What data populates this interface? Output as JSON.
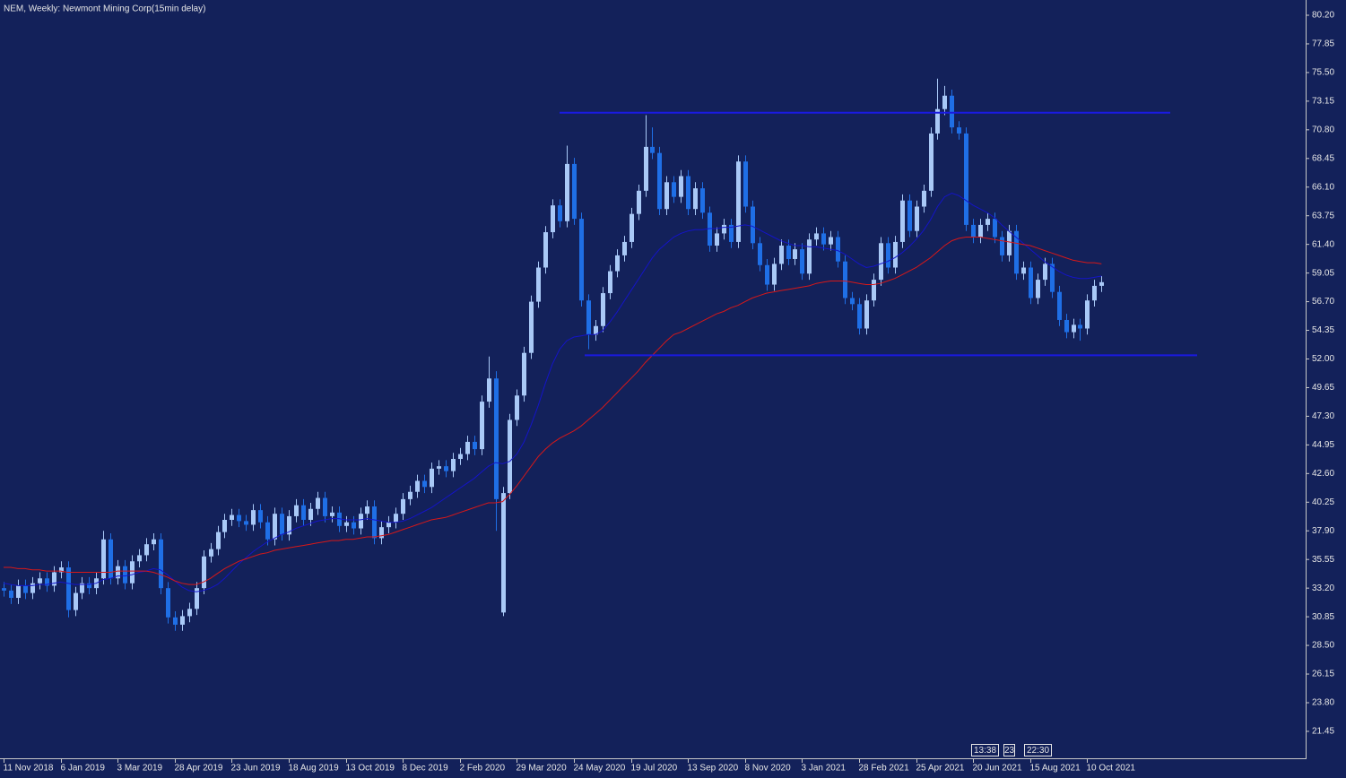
{
  "chart_data": {
    "type": "candlestick",
    "title": "NEM, Weekly:  Newmont Mining Corp(15min delay)",
    "up_color": "#a9c9f7",
    "down_color": "#1f6fe6",
    "categories": [
      "11 Nov 2018",
      null,
      null,
      null,
      null,
      null,
      null,
      null,
      "6 Jan 2019",
      null,
      null,
      null,
      null,
      null,
      null,
      null,
      "3 Mar 2019",
      null,
      null,
      null,
      null,
      null,
      null,
      null,
      "28 Apr 2019",
      null,
      null,
      null,
      null,
      null,
      null,
      null,
      "23 Jun 2019",
      null,
      null,
      null,
      null,
      null,
      null,
      null,
      "18 Aug 2019",
      null,
      null,
      null,
      null,
      null,
      null,
      null,
      "13 Oct 2019",
      null,
      null,
      null,
      null,
      null,
      null,
      null,
      "8 Dec 2019",
      null,
      null,
      null,
      null,
      null,
      null,
      null,
      "2 Feb 2020",
      null,
      null,
      null,
      null,
      null,
      null,
      null,
      "29 Mar 2020",
      null,
      null,
      null,
      null,
      null,
      null,
      null,
      "24 May 2020",
      null,
      null,
      null,
      null,
      null,
      null,
      null,
      "19 Jul 2020",
      null,
      null,
      null,
      null,
      null,
      null,
      null,
      "13 Sep 2020",
      null,
      null,
      null,
      null,
      null,
      null,
      null,
      "8 Nov 2020",
      null,
      null,
      null,
      null,
      null,
      null,
      null,
      "3 Jan 2021",
      null,
      null,
      null,
      null,
      null,
      null,
      null,
      "28 Feb 2021",
      null,
      null,
      null,
      null,
      null,
      null,
      null,
      "25 Apr 2021",
      null,
      null,
      null,
      null,
      null,
      null,
      null,
      "20 Jun 2021",
      null,
      null,
      null,
      null,
      null,
      null,
      null,
      "15 Aug 2021",
      null,
      null,
      null,
      null,
      null,
      null,
      null,
      "10 Oct 2021",
      null,
      null
    ],
    "open": [
      33.2,
      33.0,
      32.4,
      33.4,
      32.8,
      33.6,
      34.0,
      33.4,
      34.5,
      34.9,
      31.4,
      32.8,
      33.6,
      33.2,
      34.0,
      37.2,
      34.0,
      35.0,
      33.6,
      35.4,
      35.9,
      36.8,
      37.2,
      33.2,
      30.8,
      30.2,
      30.9,
      31.5,
      33.2,
      35.8,
      36.4,
      37.8,
      38.8,
      39.2,
      38.7,
      38.4,
      39.6,
      38.6,
      37.2,
      39.3,
      37.6,
      39.1,
      40.0,
      38.8,
      39.7,
      40.6,
      39.1,
      39.4,
      38.3,
      38.6,
      38.1,
      39.3,
      39.9,
      37.3,
      38.2,
      38.6,
      39.3,
      40.5,
      41.1,
      42.0,
      41.5,
      43.0,
      43.2,
      42.8,
      43.8,
      44.2,
      45.2,
      44.6,
      48.5,
      50.4,
      31.2,
      41.0,
      47.0,
      49.0,
      52.5,
      56.7,
      59.5,
      62.4,
      64.6,
      63.3,
      68.0,
      63.5,
      56.8,
      54.0,
      54.7,
      57.4,
      59.2,
      60.5,
      61.6,
      63.9,
      65.8,
      69.4,
      68.9,
      64.3,
      66.5,
      65.3,
      67.0,
      64.3,
      66.0,
      64.0,
      61.3,
      62.3,
      63.0,
      61.6,
      68.2,
      64.5,
      61.5,
      59.7,
      58.1,
      59.8,
      61.3,
      60.2,
      61.0,
      59.0,
      61.8,
      62.3,
      61.4,
      62.0,
      60.0,
      57.0,
      56.5,
      54.5,
      56.8,
      58.5,
      61.5,
      59.5,
      61.6,
      65.0,
      62.5,
      64.5,
      65.8,
      70.5,
      72.5,
      73.6,
      71.0,
      70.5,
      63.0,
      62.0,
      63.0,
      63.5,
      62.0,
      60.5,
      62.5,
      59.0,
      59.5,
      57.0,
      58.5,
      59.8,
      57.5,
      55.2,
      54.2,
      54.8,
      54.5,
      56.8,
      58.0
    ],
    "high": [
      33.7,
      33.5,
      33.9,
      33.9,
      34.1,
      34.5,
      34.5,
      35.0,
      35.4,
      35.4,
      33.3,
      34.1,
      34.1,
      34.5,
      37.9,
      37.7,
      35.5,
      35.5,
      35.9,
      36.4,
      37.3,
      37.7,
      37.7,
      33.7,
      31.3,
      31.4,
      32.0,
      33.7,
      36.3,
      36.9,
      38.3,
      39.3,
      39.7,
      39.7,
      39.2,
      40.1,
      40.1,
      39.1,
      39.8,
      39.8,
      39.6,
      40.5,
      40.5,
      40.2,
      41.1,
      41.1,
      39.9,
      39.9,
      39.1,
      39.1,
      39.8,
      40.4,
      40.4,
      38.7,
      39.1,
      39.8,
      41.0,
      41.6,
      42.5,
      42.5,
      43.5,
      43.7,
      43.7,
      44.3,
      44.7,
      45.7,
      45.7,
      49.0,
      52.2,
      51.0,
      41.5,
      47.5,
      49.5,
      53.0,
      57.2,
      60.0,
      62.9,
      65.1,
      65.1,
      69.5,
      68.5,
      64.0,
      57.3,
      55.2,
      57.9,
      59.7,
      61.0,
      62.1,
      64.4,
      66.3,
      72.0,
      71.0,
      69.4,
      67.0,
      67.0,
      67.5,
      67.5,
      66.5,
      66.5,
      64.5,
      62.8,
      63.5,
      63.5,
      68.7,
      68.7,
      65.0,
      62.0,
      60.2,
      60.3,
      61.8,
      61.8,
      61.5,
      61.5,
      62.3,
      62.8,
      62.8,
      62.5,
      62.5,
      60.5,
      57.5,
      57.0,
      57.3,
      59.0,
      62.0,
      62.0,
      62.1,
      65.5,
      65.5,
      65.0,
      66.3,
      71.0,
      75.0,
      74.4,
      74.1,
      71.5,
      71.0,
      63.5,
      63.5,
      64.0,
      64.0,
      62.5,
      63.0,
      63.0,
      60.0,
      60.0,
      59.0,
      60.3,
      60.3,
      58.0,
      55.7,
      55.3,
      55.3,
      57.3,
      58.5,
      58.8
    ],
    "low": [
      32.5,
      31.9,
      31.9,
      32.3,
      32.3,
      33.1,
      32.9,
      32.9,
      34.0,
      30.8,
      30.9,
      32.3,
      32.7,
      32.7,
      33.5,
      33.5,
      33.5,
      33.1,
      33.1,
      34.9,
      35.4,
      36.3,
      32.7,
      30.3,
      29.7,
      29.7,
      30.4,
      31.0,
      32.7,
      35.3,
      35.9,
      37.3,
      38.3,
      38.2,
      37.9,
      37.9,
      38.1,
      36.7,
      36.7,
      37.1,
      37.1,
      38.6,
      38.3,
      38.3,
      39.2,
      38.6,
      38.6,
      37.8,
      37.8,
      37.6,
      37.6,
      38.8,
      36.8,
      36.8,
      37.7,
      38.1,
      38.8,
      40.0,
      40.6,
      41.0,
      41.0,
      42.5,
      42.3,
      42.3,
      43.3,
      43.7,
      44.1,
      44.1,
      48.0,
      37.9,
      30.9,
      40.5,
      46.5,
      48.5,
      52.0,
      56.2,
      59.0,
      61.9,
      62.8,
      62.8,
      63.0,
      56.3,
      52.8,
      53.5,
      54.2,
      56.9,
      58.7,
      60.0,
      61.1,
      63.4,
      65.3,
      68.4,
      63.8,
      63.8,
      64.8,
      64.8,
      63.8,
      63.8,
      63.5,
      60.8,
      60.8,
      61.8,
      61.1,
      61.1,
      64.0,
      61.0,
      59.2,
      57.6,
      57.6,
      59.3,
      59.7,
      59.7,
      58.5,
      58.5,
      61.3,
      60.9,
      60.9,
      59.5,
      56.5,
      56.0,
      54.0,
      54.0,
      56.3,
      58.0,
      59.0,
      59.0,
      61.1,
      62.0,
      62.0,
      64.0,
      65.3,
      70.0,
      72.0,
      70.5,
      70.0,
      62.5,
      61.5,
      61.5,
      62.5,
      61.5,
      60.0,
      60.0,
      58.5,
      58.5,
      56.5,
      56.5,
      58.0,
      57.0,
      54.7,
      53.7,
      53.7,
      53.5,
      54.0,
      56.3,
      57.5
    ],
    "close": [
      33.0,
      32.4,
      33.4,
      32.8,
      33.6,
      34.0,
      33.4,
      34.5,
      34.9,
      31.4,
      32.8,
      33.6,
      33.2,
      34.0,
      37.2,
      34.0,
      35.0,
      33.6,
      35.4,
      35.9,
      36.8,
      37.2,
      33.2,
      30.8,
      30.2,
      30.9,
      31.5,
      33.2,
      35.8,
      36.4,
      37.8,
      38.8,
      39.2,
      38.7,
      38.4,
      39.6,
      38.6,
      37.2,
      39.3,
      37.6,
      39.1,
      40.0,
      38.8,
      39.7,
      40.6,
      39.1,
      39.4,
      38.3,
      38.6,
      38.1,
      39.3,
      39.9,
      37.3,
      38.2,
      38.6,
      39.3,
      40.5,
      41.1,
      42.0,
      41.5,
      43.0,
      43.2,
      42.8,
      43.8,
      44.2,
      45.2,
      44.6,
      48.5,
      50.4,
      40.5,
      41.0,
      47.0,
      49.0,
      52.5,
      56.7,
      59.5,
      62.4,
      64.6,
      63.3,
      68.0,
      63.5,
      56.8,
      54.0,
      54.7,
      57.4,
      59.2,
      60.5,
      61.6,
      63.9,
      65.8,
      69.4,
      68.9,
      64.3,
      66.5,
      65.3,
      67.0,
      64.3,
      66.0,
      64.0,
      61.3,
      62.3,
      63.0,
      61.6,
      68.2,
      64.5,
      61.5,
      59.7,
      58.1,
      59.8,
      61.3,
      60.2,
      61.0,
      59.0,
      61.8,
      62.3,
      61.4,
      62.0,
      60.0,
      57.0,
      56.5,
      54.5,
      56.8,
      58.5,
      61.5,
      59.5,
      61.6,
      65.0,
      62.5,
      64.5,
      65.8,
      70.5,
      72.5,
      73.6,
      71.0,
      70.5,
      63.0,
      62.0,
      63.0,
      63.5,
      62.0,
      60.5,
      62.5,
      59.0,
      59.5,
      57.0,
      58.5,
      59.8,
      57.5,
      55.2,
      54.2,
      54.8,
      54.5,
      56.8,
      58.0,
      58.3
    ],
    "lines": [
      {
        "color": "#1414c8",
        "values": [
          33.6,
          33.5,
          33.4,
          33.4,
          33.4,
          33.5,
          33.5,
          33.6,
          33.7,
          33.6,
          33.5,
          33.5,
          33.5,
          33.6,
          33.9,
          34.0,
          34.2,
          34.2,
          34.3,
          34.5,
          34.6,
          34.8,
          34.7,
          34.3,
          33.8,
          33.3,
          33.0,
          32.9,
          33.0,
          33.2,
          33.5,
          34.0,
          34.6,
          35.2,
          35.7,
          36.2,
          36.6,
          37.0,
          37.3,
          37.6,
          37.8,
          38.1,
          38.3,
          38.5,
          38.7,
          38.8,
          38.9,
          38.9,
          38.8,
          38.8,
          38.8,
          38.9,
          38.8,
          38.7,
          38.6,
          38.6,
          38.7,
          38.9,
          39.2,
          39.5,
          39.8,
          40.2,
          40.6,
          41.0,
          41.4,
          41.8,
          42.2,
          42.7,
          43.2,
          43.5,
          43.4,
          43.6,
          44.2,
          45.2,
          46.6,
          48.2,
          50.0,
          51.6,
          52.8,
          53.5,
          53.8,
          53.9,
          54.0,
          54.0,
          54.3,
          55.0,
          55.8,
          56.7,
          57.6,
          58.5,
          59.4,
          60.3,
          61.0,
          61.5,
          62.0,
          62.3,
          62.5,
          62.6,
          62.6,
          62.7,
          62.7,
          62.8,
          62.8,
          62.9,
          63.0,
          62.9,
          62.6,
          62.3,
          62.0,
          61.7,
          61.5,
          61.3,
          61.3,
          61.2,
          61.2,
          61.1,
          61.0,
          60.9,
          60.6,
          60.2,
          59.8,
          59.5,
          59.6,
          59.8,
          60.0,
          60.3,
          60.7,
          61.2,
          61.8,
          62.5,
          63.4,
          64.5,
          65.3,
          65.6,
          65.4,
          65.0,
          64.6,
          64.3,
          64.0,
          63.6,
          63.0,
          62.5,
          62.0,
          61.5,
          61.0,
          60.5,
          60.0,
          59.6,
          59.2,
          58.9,
          58.7,
          58.6,
          58.6,
          58.7,
          58.8
        ]
      },
      {
        "color": "#d81818",
        "values": [
          34.9,
          34.9,
          34.8,
          34.8,
          34.7,
          34.7,
          34.6,
          34.6,
          34.6,
          34.5,
          34.5,
          34.5,
          34.5,
          34.5,
          34.5,
          34.5,
          34.6,
          34.6,
          34.6,
          34.6,
          34.6,
          34.5,
          34.3,
          34.1,
          33.8,
          33.6,
          33.5,
          33.5,
          33.7,
          34.0,
          34.4,
          34.8,
          35.1,
          35.4,
          35.6,
          35.8,
          36.0,
          36.1,
          36.3,
          36.4,
          36.5,
          36.6,
          36.7,
          36.8,
          36.9,
          37.0,
          37.1,
          37.1,
          37.2,
          37.2,
          37.3,
          37.4,
          37.4,
          37.5,
          37.6,
          37.8,
          38.0,
          38.2,
          38.4,
          38.6,
          38.8,
          38.9,
          39.0,
          39.2,
          39.4,
          39.6,
          39.8,
          40.0,
          40.2,
          40.2,
          40.3,
          40.9,
          41.6,
          42.4,
          43.2,
          44.0,
          44.6,
          45.1,
          45.5,
          45.8,
          46.1,
          46.5,
          47.0,
          47.5,
          48.0,
          48.6,
          49.2,
          49.8,
          50.4,
          51.0,
          51.7,
          52.3,
          52.9,
          53.5,
          54.0,
          54.2,
          54.5,
          54.8,
          55.1,
          55.4,
          55.7,
          55.9,
          56.2,
          56.4,
          56.7,
          57.0,
          57.2,
          57.4,
          57.5,
          57.6,
          57.7,
          57.8,
          57.9,
          58.0,
          58.2,
          58.3,
          58.4,
          58.4,
          58.4,
          58.3,
          58.2,
          58.1,
          58.1,
          58.2,
          58.4,
          58.6,
          58.9,
          59.2,
          59.5,
          59.9,
          60.3,
          60.8,
          61.3,
          61.7,
          61.9,
          62.0,
          62.0,
          62.0,
          61.9,
          61.8,
          61.7,
          61.6,
          61.5,
          61.4,
          61.3,
          61.1,
          60.9,
          60.7,
          60.5,
          60.3,
          60.1,
          60.0,
          59.9,
          59.9,
          59.8
        ]
      }
    ],
    "hlines": [
      72.2,
      52.3
    ],
    "hline_color": "#1a1ae0",
    "ylim": [
      19.24,
      81.45
    ],
    "yticks": [
      {
        "value": 80.2,
        "label": "80.20"
      },
      77.85,
      {
        "value": 75.5,
        "label": "75.50"
      },
      73.15,
      {
        "value": 70.8,
        "label": "70.80"
      },
      68.45,
      {
        "value": 66.1,
        "label": "66.10"
      },
      63.75,
      {
        "value": 61.4,
        "label": "61.40"
      },
      59.05,
      {
        "value": 56.7,
        "label": "56.70"
      },
      54.35,
      {
        "value": 52,
        "label": "52.00"
      },
      49.65,
      {
        "value": 47.3,
        "label": "47.30"
      },
      44.95,
      {
        "value": 42.6,
        "label": "42.60"
      },
      40.25,
      {
        "value": 37.9,
        "label": "37.90"
      },
      35.55,
      {
        "value": 33.2,
        "label": "33.20"
      },
      30.85,
      {
        "value": 28.5,
        "label": "28.50"
      },
      26.15,
      {
        "value": 23.8,
        "label": "23.80"
      },
      21.45
    ],
    "annotations": [
      "13:38",
      "23",
      "22:30"
    ]
  }
}
